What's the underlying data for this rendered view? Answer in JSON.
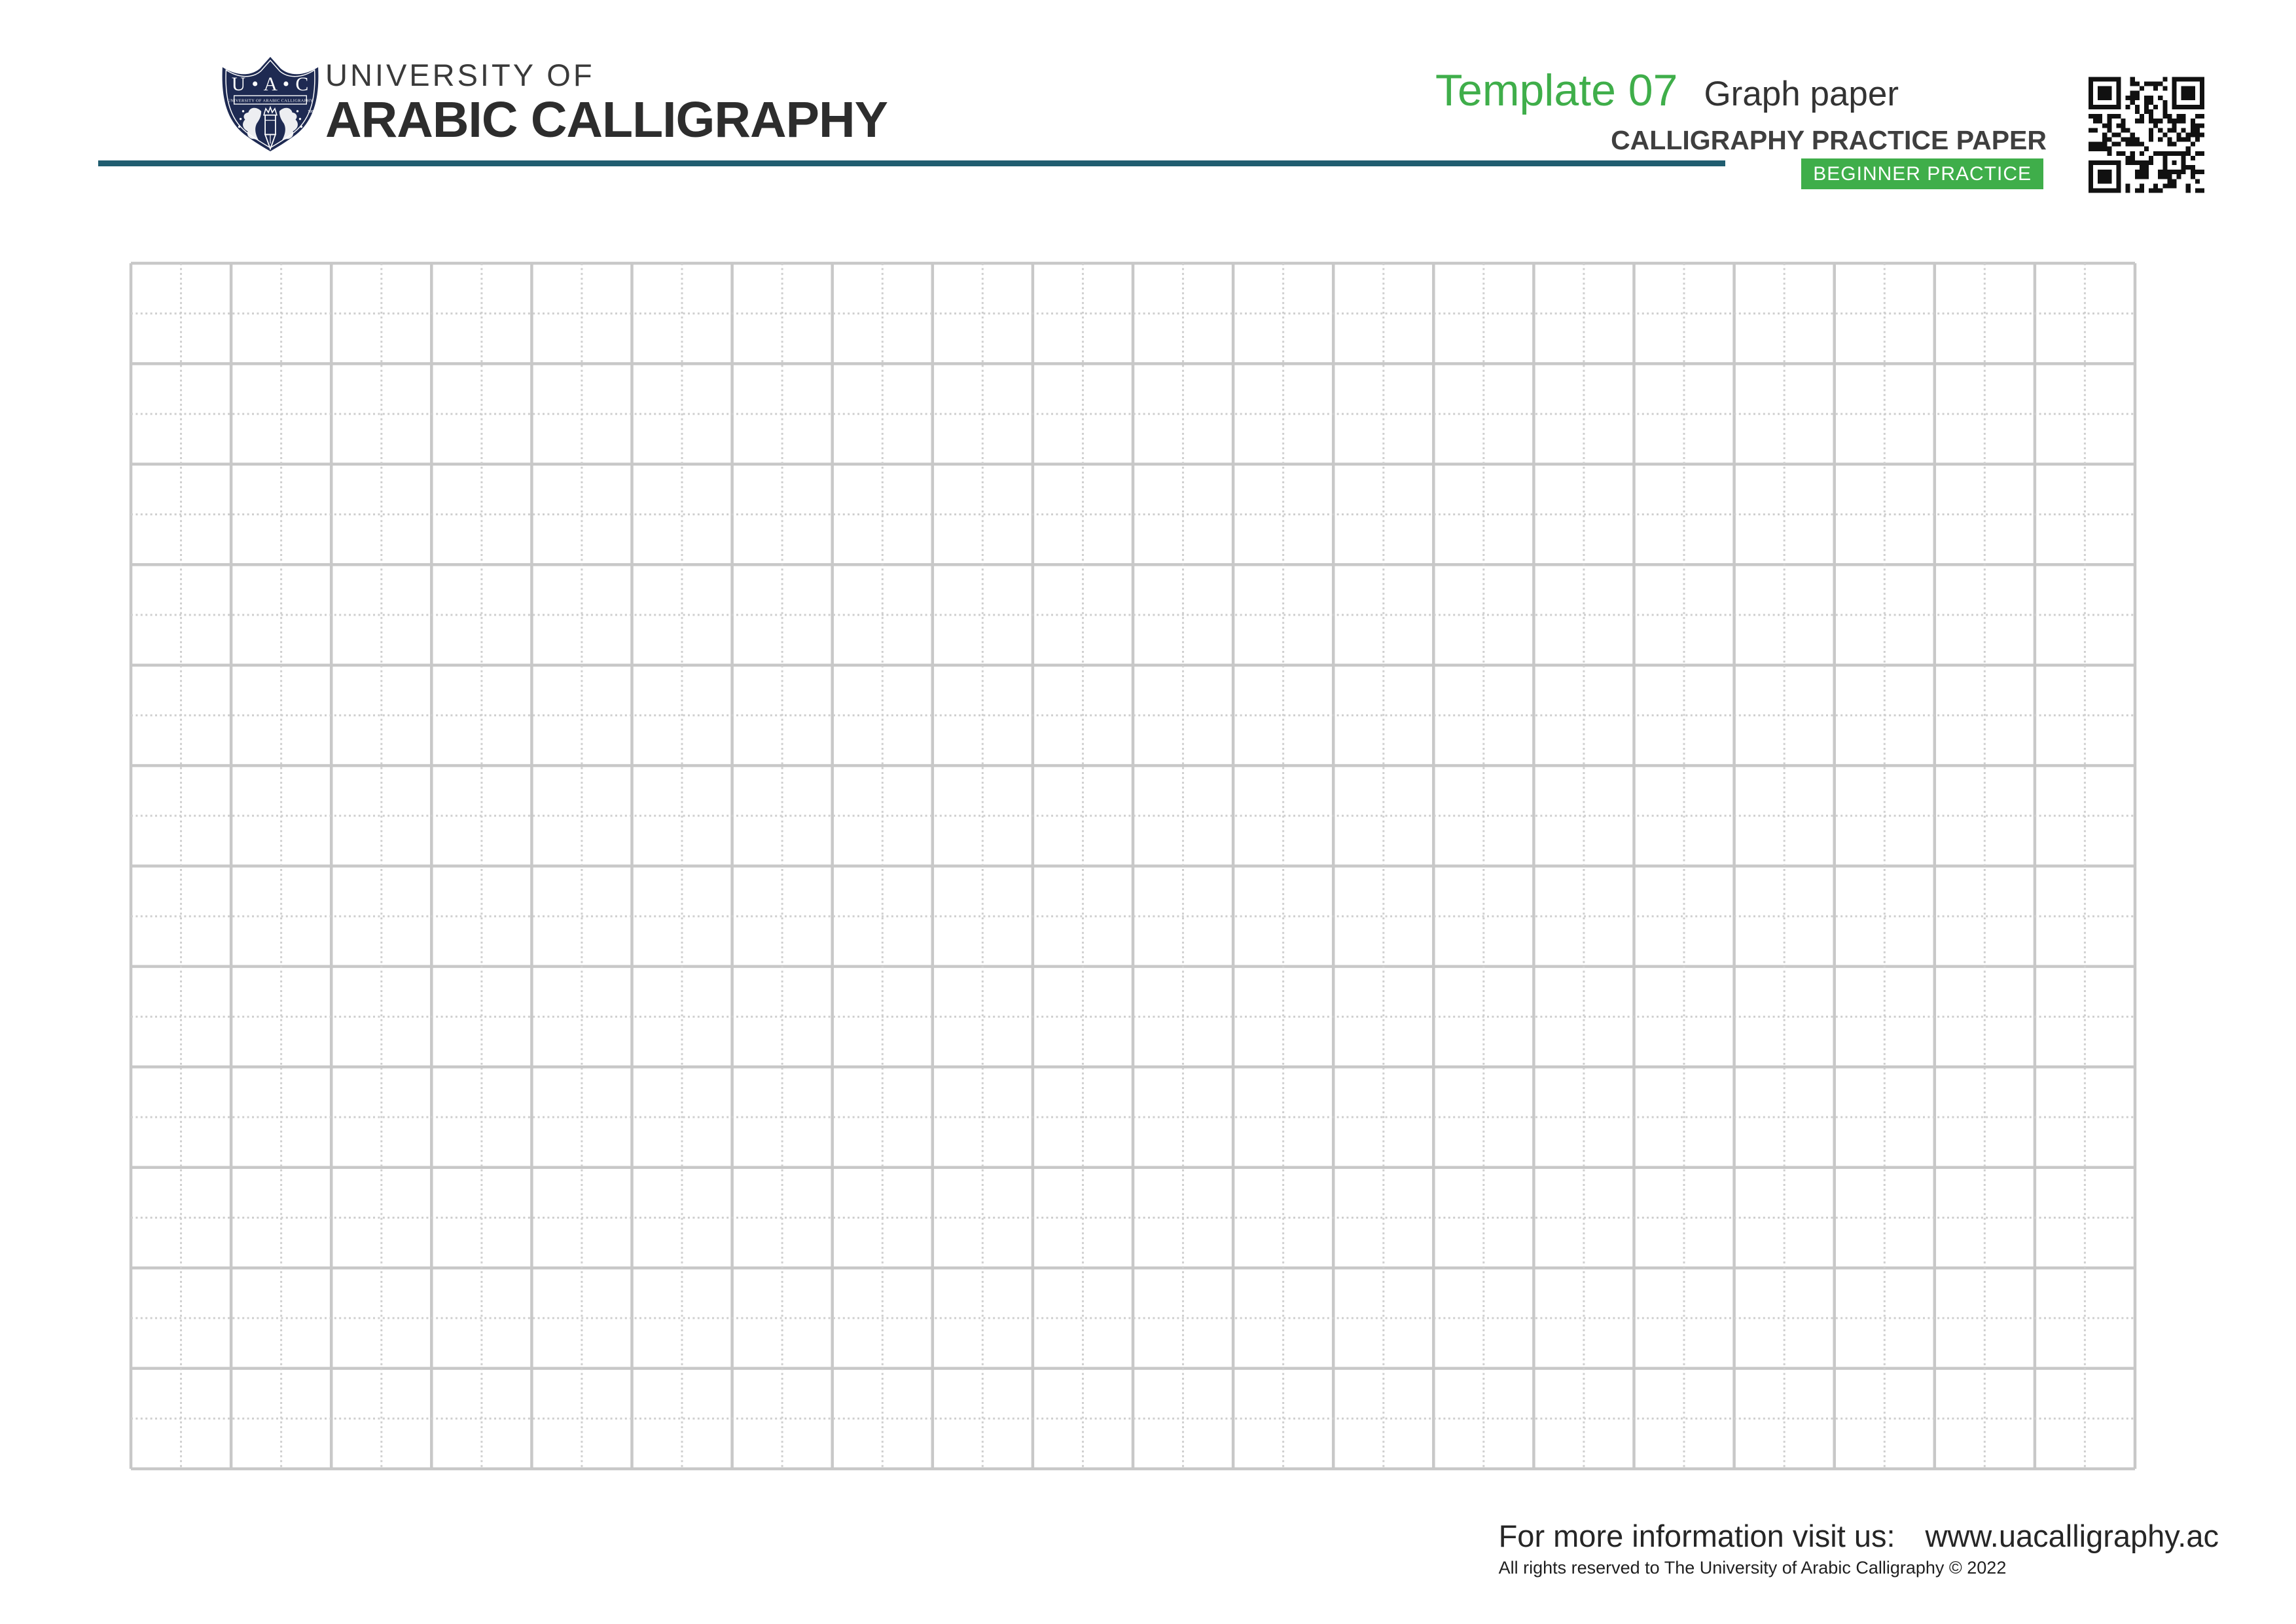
{
  "header": {
    "logo": {
      "abbrev": "U • A • C",
      "banner_text": "UNIVERSITY OF ARABIC CALLIGRAPHY",
      "year": "1984",
      "navy": "#1e2a52"
    },
    "university_line1": "UNIVERSITY OF",
    "university_line2": "ARABIC CALLIGRAPHY",
    "template_label": "Template 07",
    "template_name": "Graph paper",
    "subtitle": "CALLIGRAPHY PRACTICE PAPER",
    "badge_label": "BEGINNER PRACTICE",
    "accent_green": "#3fae4a",
    "rule_color": "#205d70"
  },
  "grid": {
    "columns": 20,
    "rows": 12,
    "solid_color": "#c8c8c8",
    "dashed_color": "#cfcfcf"
  },
  "footer": {
    "info_label": "For more information visit us:",
    "website": "www.uacalligraphy.ac",
    "copyright": "All rights reserved to The University of Arabic Calligraphy © 2022"
  }
}
